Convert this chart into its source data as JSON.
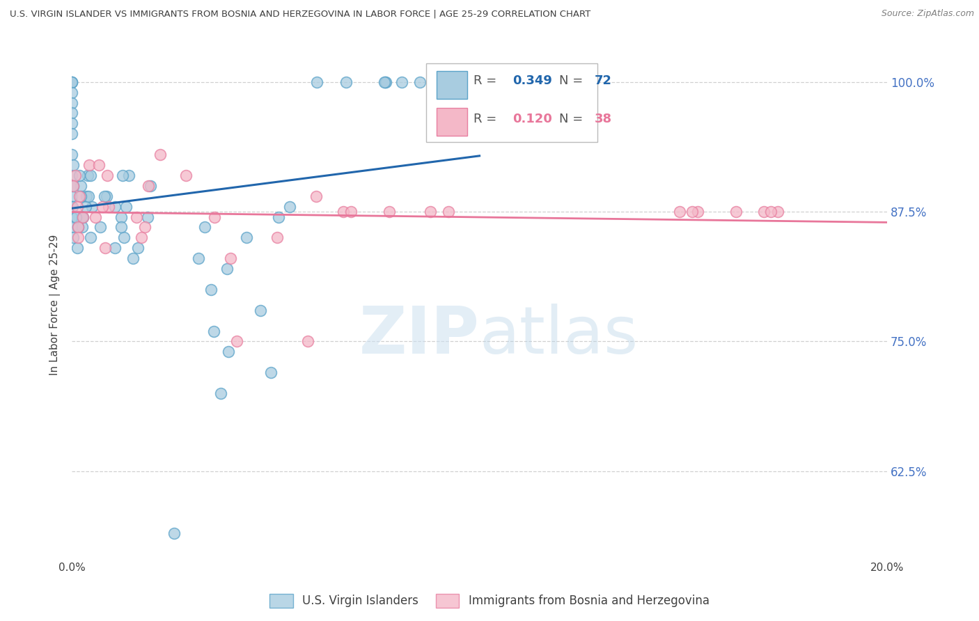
{
  "title": "U.S. VIRGIN ISLANDER VS IMMIGRANTS FROM BOSNIA AND HERZEGOVINA IN LABOR FORCE | AGE 25-29 CORRELATION CHART",
  "source": "Source: ZipAtlas.com",
  "ylabel": "In Labor Force | Age 25-29",
  "ytick_labels": [
    "100.0%",
    "87.5%",
    "75.0%",
    "62.5%"
  ],
  "ytick_values": [
    1.0,
    0.875,
    0.75,
    0.625
  ],
  "xlim": [
    0.0,
    0.2
  ],
  "ylim": [
    0.54,
    1.03
  ],
  "blue_R": 0.349,
  "blue_N": 72,
  "pink_R": 0.12,
  "pink_N": 38,
  "legend_label_blue": "U.S. Virgin Islanders",
  "legend_label_pink": "Immigrants from Bosnia and Herzegovina",
  "watermark_zip": "ZIP",
  "watermark_atlas": "atlas",
  "background_color": "#ffffff",
  "blue_color": "#a8cce0",
  "blue_edge_color": "#5ba3c9",
  "pink_color": "#f4b8c8",
  "pink_edge_color": "#e87fa0",
  "blue_line_color": "#2166ac",
  "pink_line_color": "#e8769a",
  "blue_text_color": "#2166ac",
  "pink_text_color": "#e8769a",
  "right_axis_color": "#4472c4",
  "grid_color": "#d0d0d0",
  "title_color": "#404040",
  "source_color": "#808080",
  "ylabel_color": "#404040"
}
